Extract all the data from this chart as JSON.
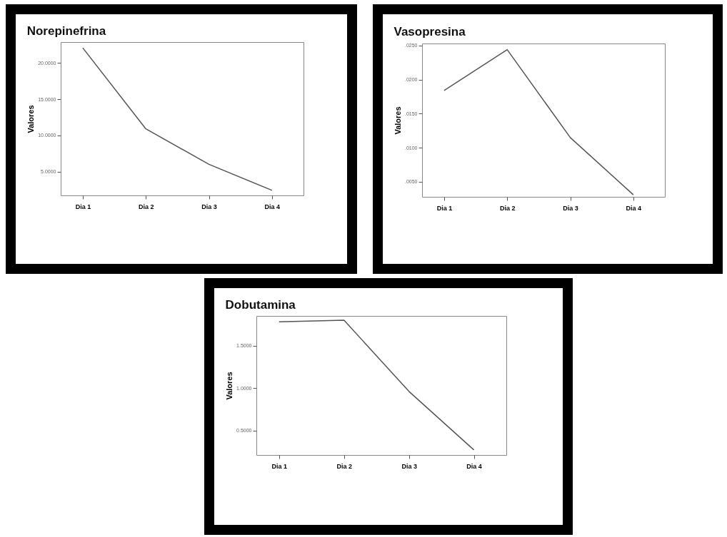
{
  "chart_data": [
    {
      "type": "line",
      "title": "Norepinefrina",
      "ylabel": "Valores",
      "categories": [
        "Dia 1",
        "Dia 2",
        "Dia 3",
        "Dia 4"
      ],
      "series": [
        {
          "color": "#555555",
          "values": [
            22.1,
            10.9,
            6.0,
            2.4
          ]
        }
      ],
      "ylim": [
        1.7,
        22.9
      ],
      "yticks": [
        {
          "value": 5,
          "label": "5.0000"
        },
        {
          "value": 10,
          "label": "10.0000"
        },
        {
          "value": 15,
          "label": "15.0000"
        },
        {
          "value": 20,
          "label": "20.0000"
        }
      ],
      "grid": false
    },
    {
      "type": "line",
      "title": "Vasopresina",
      "ylabel": "Valores",
      "categories": [
        "Dia 1",
        "Dia 2",
        "Dia 3",
        "Dia 4"
      ],
      "series": [
        {
          "color": "#555555",
          "values": [
            0.0184,
            0.0244,
            0.0115,
            0.0031
          ]
        }
      ],
      "ylim": [
        0.0028,
        0.0253
      ],
      "yticks": [
        {
          "value": 0.005,
          "label": ".0050"
        },
        {
          "value": 0.01,
          "label": ".0100"
        },
        {
          "value": 0.015,
          "label": ".0150"
        },
        {
          "value": 0.02,
          "label": ".0200"
        },
        {
          "value": 0.025,
          "label": ".0250"
        }
      ],
      "grid": false
    },
    {
      "type": "line",
      "title": "Dobutamina",
      "ylabel": "Valores",
      "categories": [
        "Dia 1",
        "Dia 2",
        "Dia 3",
        "Dia 4"
      ],
      "series": [
        {
          "color": "#555555",
          "values": [
            1.78,
            1.8,
            0.96,
            0.27
          ]
        }
      ],
      "ylim": [
        0.21,
        1.85
      ],
      "yticks": [
        {
          "value": 0.5,
          "label": "0.5000"
        },
        {
          "value": 1,
          "label": "1.0000"
        },
        {
          "value": 1.5,
          "label": "1.5000"
        }
      ],
      "grid": false
    }
  ]
}
